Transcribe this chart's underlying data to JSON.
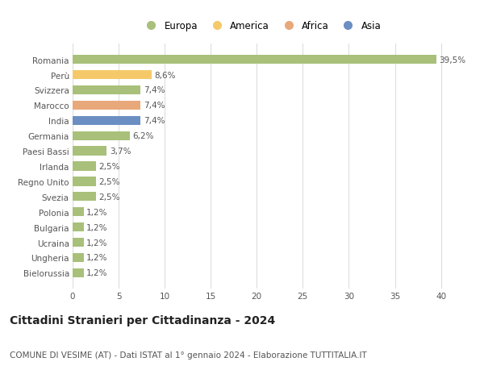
{
  "categories": [
    "Romania",
    "Perù",
    "Svizzera",
    "Marocco",
    "India",
    "Germania",
    "Paesi Bassi",
    "Irlanda",
    "Regno Unito",
    "Svezia",
    "Polonia",
    "Bulgaria",
    "Ucraina",
    "Ungheria",
    "Bielorussia"
  ],
  "values": [
    39.5,
    8.6,
    7.4,
    7.4,
    7.4,
    6.2,
    3.7,
    2.5,
    2.5,
    2.5,
    1.2,
    1.2,
    1.2,
    1.2,
    1.2
  ],
  "labels": [
    "39,5%",
    "8,6%",
    "7,4%",
    "7,4%",
    "7,4%",
    "6,2%",
    "3,7%",
    "2,5%",
    "2,5%",
    "2,5%",
    "1,2%",
    "1,2%",
    "1,2%",
    "1,2%",
    "1,2%"
  ],
  "colors": [
    "#a8c07a",
    "#f5c96a",
    "#a8c07a",
    "#e8a87a",
    "#6b8fc2",
    "#a8c07a",
    "#a8c07a",
    "#a8c07a",
    "#a8c07a",
    "#a8c07a",
    "#a8c07a",
    "#a8c07a",
    "#a8c07a",
    "#a8c07a",
    "#a8c07a"
  ],
  "legend_labels": [
    "Europa",
    "America",
    "Africa",
    "Asia"
  ],
  "legend_colors": [
    "#a8c07a",
    "#f5c96a",
    "#e8a87a",
    "#6b8fc2"
  ],
  "title": "Cittadini Stranieri per Cittadinanza - 2024",
  "subtitle": "COMUNE DI VESIME (AT) - Dati ISTAT al 1° gennaio 2024 - Elaborazione TUTTITALIA.IT",
  "xlim": [
    0,
    41
  ],
  "xticks": [
    0,
    5,
    10,
    15,
    20,
    25,
    30,
    35,
    40
  ],
  "background_color": "#ffffff",
  "grid_color": "#dddddd",
  "title_fontsize": 10,
  "subtitle_fontsize": 7.5,
  "label_fontsize": 7.5,
  "tick_fontsize": 7.5,
  "legend_fontsize": 8.5
}
